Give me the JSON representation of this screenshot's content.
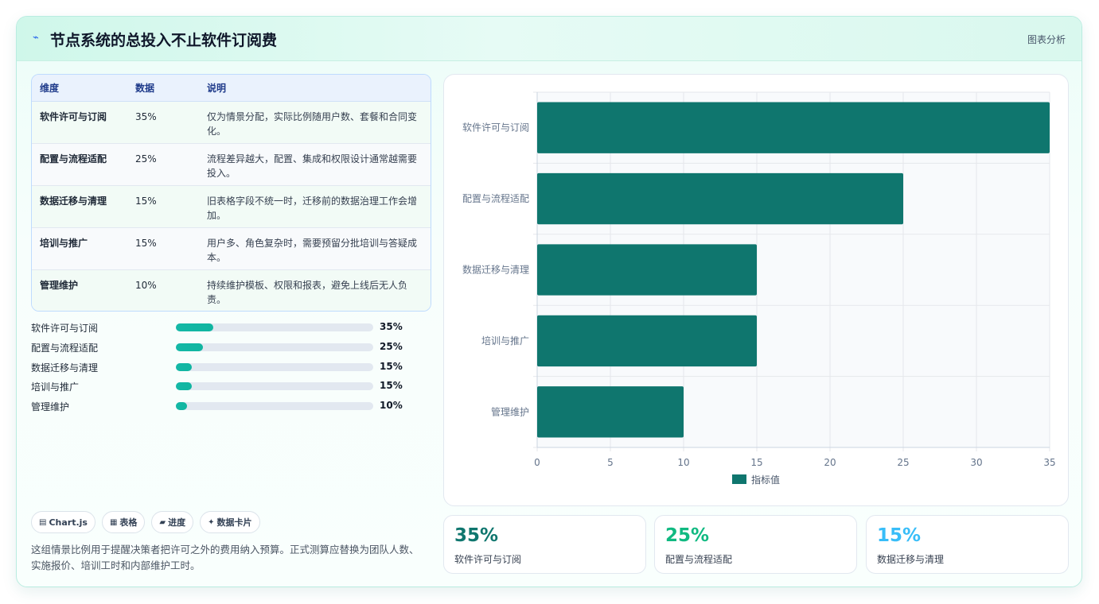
{
  "header": {
    "icon": "sparkle-icon",
    "title": "节点系统的总投入不止软件订阅费",
    "tag": "图表分析"
  },
  "table": {
    "headers": [
      "维度",
      "数据",
      "说明"
    ],
    "rows": [
      {
        "dim": "软件许可与订阅",
        "value": "35%",
        "desc": "仅为情景分配，实际比例随用户数、套餐和合同变化。"
      },
      {
        "dim": "配置与流程适配",
        "value": "25%",
        "desc": "流程差异越大，配置、集成和权限设计通常越需要投入。"
      },
      {
        "dim": "数据迁移与清理",
        "value": "15%",
        "desc": "旧表格字段不统一时，迁移前的数据治理工作会增加。"
      },
      {
        "dim": "培训与推广",
        "value": "15%",
        "desc": "用户多、角色复杂时，需要预留分批培训与答疑成本。"
      },
      {
        "dim": "管理维护",
        "value": "10%",
        "desc": "持续维护模板、权限和报表，避免上线后无人负责。"
      }
    ]
  },
  "progress": [
    {
      "label": "软件许可与订阅",
      "value_text": "35%",
      "fraction": 0.19
    },
    {
      "label": "配置与流程适配",
      "value_text": "25%",
      "fraction": 0.137
    },
    {
      "label": "数据迁移与清理",
      "value_text": "15%",
      "fraction": 0.082
    },
    {
      "label": "培训与推广",
      "value_text": "15%",
      "fraction": 0.082
    },
    {
      "label": "管理维护",
      "value_text": "10%",
      "fraction": 0.055
    }
  ],
  "chips": [
    {
      "icon": "chart-icon",
      "glyph": "▤",
      "label": "Chart.js"
    },
    {
      "icon": "table-icon",
      "glyph": "▦",
      "label": "表格"
    },
    {
      "icon": "progress-icon",
      "glyph": "▰",
      "label": "进度"
    },
    {
      "icon": "card-icon",
      "glyph": "✦",
      "label": "数据卡片"
    }
  ],
  "note": "这组情景比例用于提醒决策者把许可之外的费用纳入预算。正式测算应替换为团队人数、实施报价、培训工时和内部维护工时。",
  "stats": [
    {
      "value": "35%",
      "label": "软件许可与订阅",
      "color": "#0f766e"
    },
    {
      "value": "25%",
      "label": "配置与流程适配",
      "color": "#10b981"
    },
    {
      "value": "15%",
      "label": "数据迁移与清理",
      "color": "#38bdf8"
    }
  ],
  "chart_data": {
    "type": "bar",
    "orientation": "horizontal",
    "categories": [
      "软件许可与订阅",
      "配置与流程适配",
      "数据迁移与清理",
      "培训与推广",
      "管理维护"
    ],
    "series": [
      {
        "name": "指标值",
        "values": [
          35,
          25,
          15,
          15,
          10
        ],
        "color": "#0f766e"
      }
    ],
    "xlim": [
      0,
      35
    ],
    "xticks": [
      "0",
      "5",
      "10",
      "15",
      "20",
      "25",
      "30",
      "35"
    ],
    "grid": true,
    "legend": "bottom"
  }
}
